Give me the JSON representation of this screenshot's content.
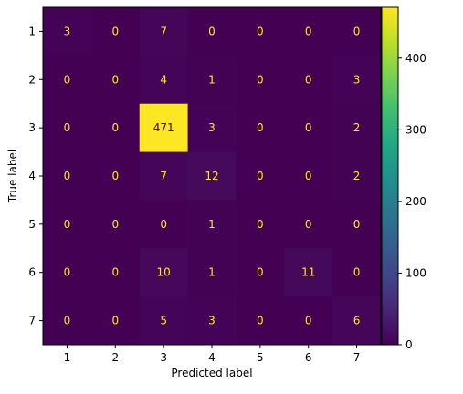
{
  "chart_data": {
    "type": "heatmap",
    "title": "",
    "xlabel": "Predicted label",
    "ylabel": "True label",
    "x_categories": [
      "1",
      "2",
      "3",
      "4",
      "5",
      "6",
      "7"
    ],
    "y_categories": [
      "1",
      "2",
      "3",
      "4",
      "5",
      "6",
      "7"
    ],
    "matrix": [
      [
        3,
        0,
        7,
        0,
        0,
        0,
        0
      ],
      [
        0,
        0,
        4,
        1,
        0,
        0,
        3
      ],
      [
        0,
        0,
        471,
        3,
        0,
        0,
        2
      ],
      [
        0,
        0,
        7,
        12,
        0,
        0,
        2
      ],
      [
        0,
        0,
        0,
        1,
        0,
        0,
        0
      ],
      [
        0,
        0,
        10,
        1,
        0,
        11,
        0
      ],
      [
        0,
        0,
        5,
        3,
        0,
        0,
        6
      ]
    ],
    "colormap": "viridis",
    "value_range": [
      0,
      471
    ],
    "colorbar_ticks": [
      "0",
      "100",
      "200",
      "300",
      "400"
    ],
    "text_color_low": "#fde725",
    "text_color_high": "#440154",
    "grid": false
  }
}
